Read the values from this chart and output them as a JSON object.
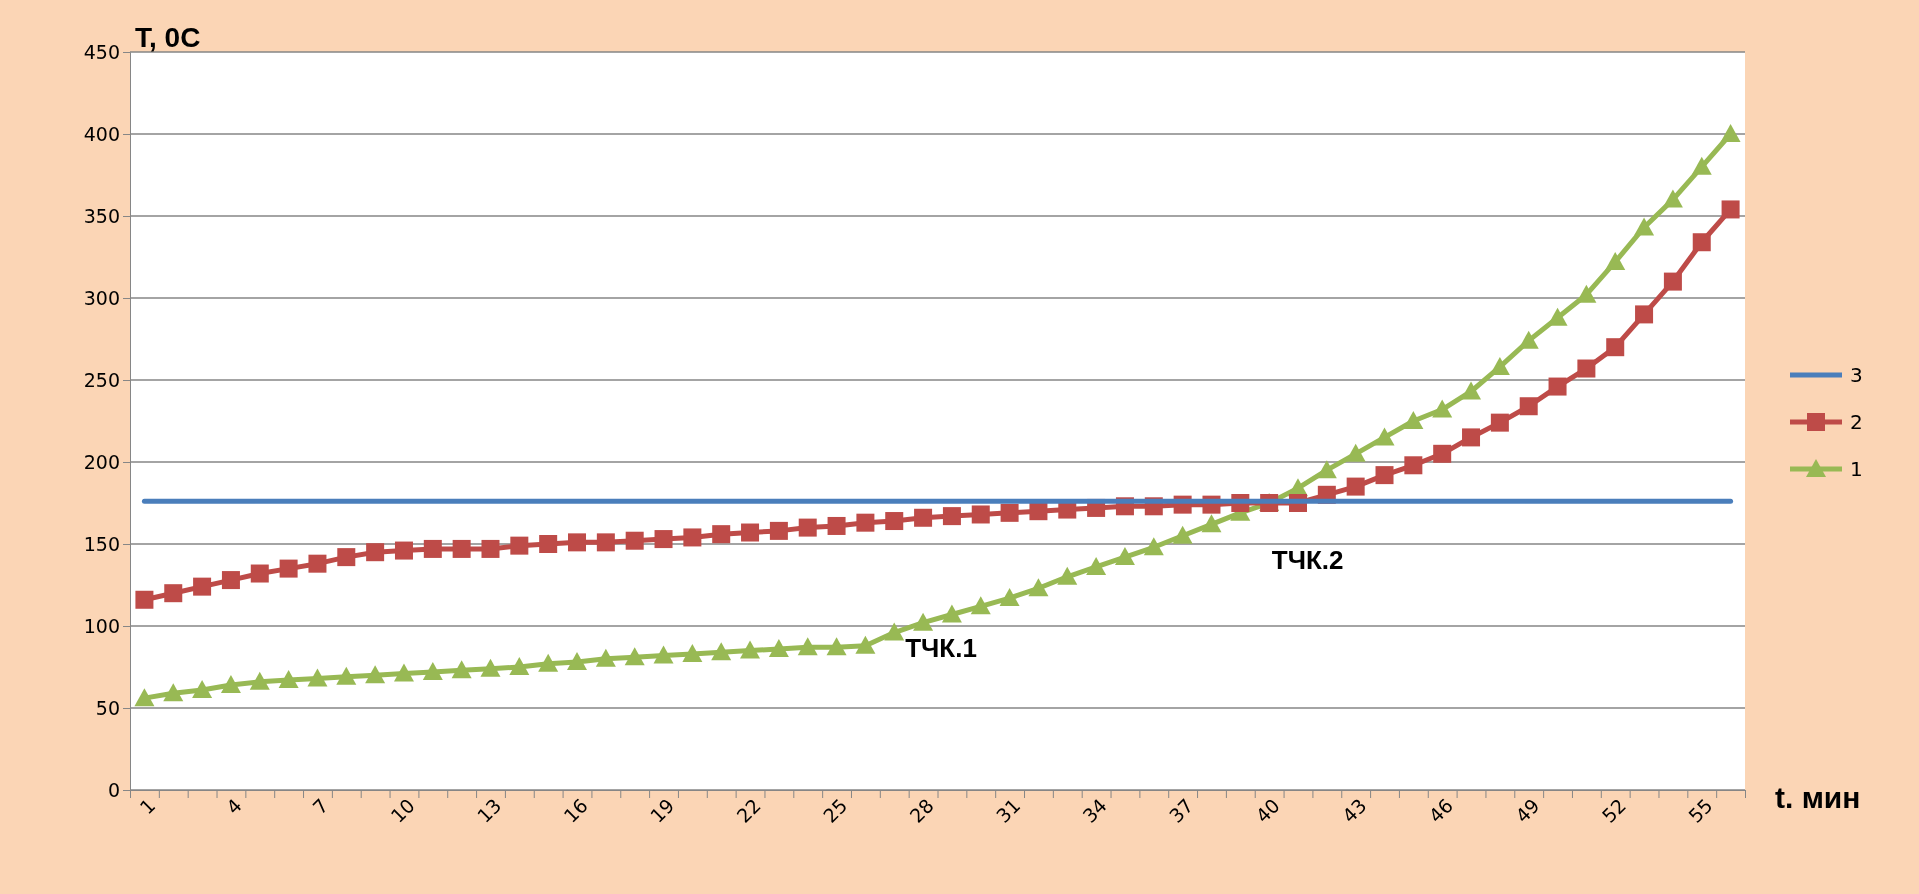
{
  "chart_data": {
    "type": "line",
    "ylabel": "T, 0C",
    "xlabel": "t. мин",
    "categories": [
      "1",
      null,
      null,
      "4",
      null,
      null,
      "7",
      null,
      null,
      "10",
      null,
      null,
      "13",
      null,
      null,
      "16",
      null,
      null,
      "19",
      null,
      null,
      "22",
      null,
      null,
      "25",
      null,
      null,
      "28",
      null,
      null,
      "31",
      null,
      null,
      "34",
      null,
      null,
      "37",
      null,
      null,
      "40",
      null,
      null,
      "43",
      null,
      null,
      "46",
      null,
      null,
      "49",
      null,
      null,
      "52",
      null,
      null,
      "55",
      null
    ],
    "ylim": [
      0,
      450
    ],
    "yticks": [
      0,
      50,
      100,
      150,
      200,
      250,
      300,
      350,
      400,
      450
    ],
    "grid": "y",
    "legend": "right",
    "series": [
      {
        "name": "3",
        "color": "#4a7ebb",
        "marker": "none",
        "values": [
          176,
          176,
          176,
          176,
          176,
          176,
          176,
          176,
          176,
          176,
          176,
          176,
          176,
          176,
          176,
          176,
          176,
          176,
          176,
          176,
          176,
          176,
          176,
          176,
          176,
          176,
          176,
          176,
          176,
          176,
          176,
          176,
          176,
          176,
          176,
          176,
          176,
          176,
          176,
          176,
          176,
          176,
          176,
          176,
          176,
          176,
          176,
          176,
          176,
          176,
          176,
          176,
          176,
          176,
          176,
          176
        ]
      },
      {
        "name": "2",
        "color": "#be4b48",
        "marker": "square",
        "values": [
          116,
          120,
          124,
          128,
          132,
          135,
          138,
          142,
          145,
          146,
          147,
          147,
          147,
          149,
          150,
          151,
          151,
          152,
          153,
          154,
          156,
          157,
          158,
          160,
          161,
          163,
          164,
          166,
          167,
          168,
          169,
          170,
          171,
          172,
          173,
          173,
          174,
          174,
          175,
          175,
          175,
          180,
          185,
          192,
          198,
          205,
          215,
          224,
          234,
          246,
          257,
          270,
          290,
          310,
          334,
          354
        ]
      },
      {
        "name": "1",
        "color": "#98b954",
        "marker": "triangle",
        "values": [
          56,
          59,
          61,
          64,
          66,
          67,
          68,
          69,
          70,
          71,
          72,
          73,
          74,
          75,
          77,
          78,
          80,
          81,
          82,
          83,
          84,
          85,
          86,
          87,
          87,
          88,
          96,
          102,
          107,
          112,
          117,
          123,
          130,
          136,
          142,
          148,
          155,
          162,
          169,
          175,
          184,
          195,
          205,
          215,
          225,
          232,
          243,
          258,
          274,
          288,
          302,
          322,
          343,
          360,
          380,
          400
        ]
      }
    ],
    "annotations": [
      "ТЧК.1",
      "ТЧК.2"
    ]
  }
}
